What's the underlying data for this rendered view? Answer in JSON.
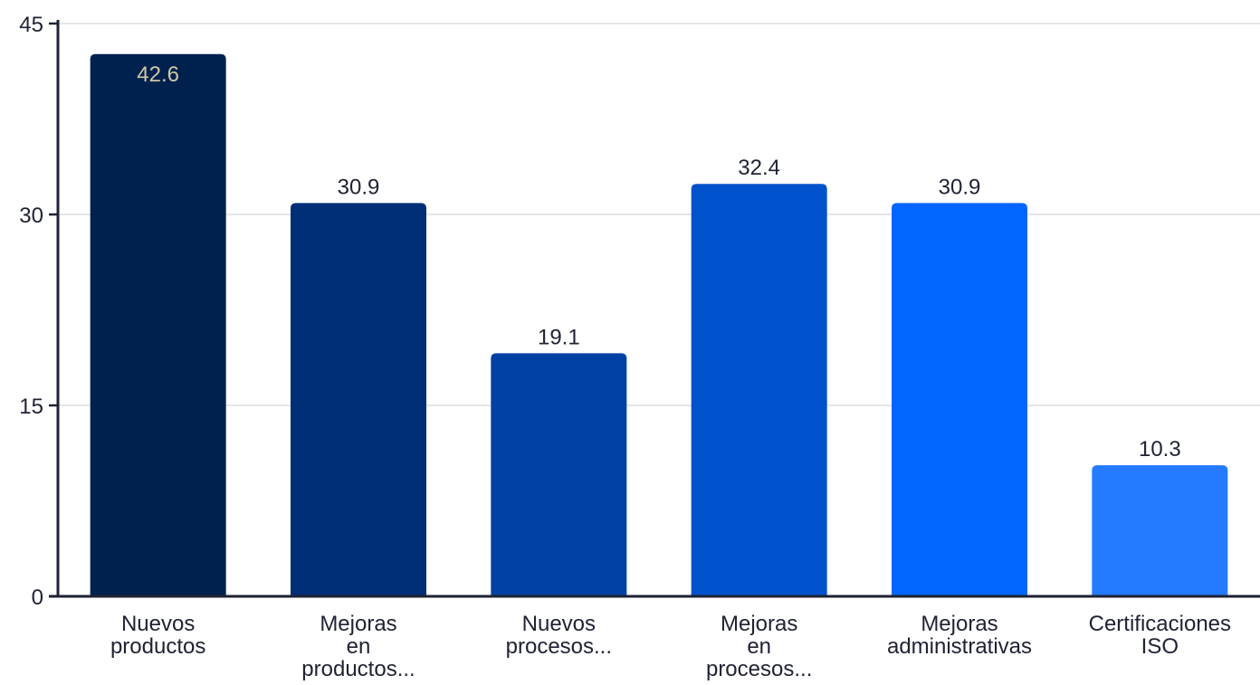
{
  "chart_data": {
    "type": "bar",
    "categories": [
      [
        "Nuevos",
        "productos"
      ],
      [
        "Mejoras",
        "en",
        "productos..."
      ],
      [
        "Nuevos",
        "procesos..."
      ],
      [
        "Mejoras",
        "en",
        "procesos..."
      ],
      [
        "Mejoras",
        "administrativas"
      ],
      [
        "Certificaciones",
        "ISO"
      ]
    ],
    "values": [
      42.6,
      30.9,
      19.1,
      32.4,
      30.9,
      10.3
    ],
    "value_labels": [
      "42.6",
      "30.9",
      "19.1",
      "32.4",
      "30.9",
      "10.3"
    ],
    "bar_colors": [
      "#00214d",
      "#002f78",
      "#0041a3",
      "#0052cc",
      "#0066ff",
      "#247bff"
    ],
    "value_label_colors": [
      "#cfc9a6",
      "#1e2233",
      "#1e2233",
      "#1e2233",
      "#1e2233",
      "#1e2233"
    ],
    "value_label_inside": [
      true,
      false,
      false,
      false,
      false,
      false
    ],
    "y_ticks": [
      "0",
      "15",
      "30",
      "45"
    ],
    "y_tick_values": [
      0,
      15,
      30,
      45
    ],
    "ylim": [
      0,
      45
    ],
    "grid": true,
    "legend": "none",
    "title": "",
    "xlabel": "",
    "ylabel": ""
  }
}
